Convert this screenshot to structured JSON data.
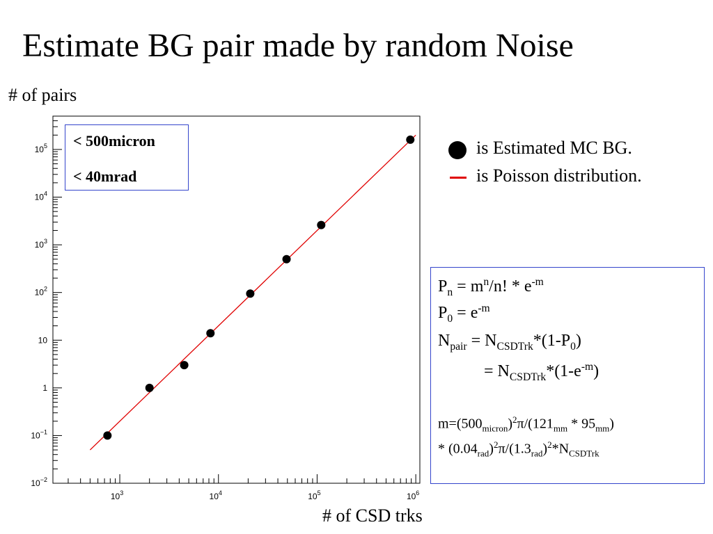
{
  "slide": {
    "title": "Estimate BG pair made by random Noise",
    "ylabel": "# of pairs",
    "xlabel": "# of CSD trks"
  },
  "cuts": {
    "line1": "< 500micron",
    "line2": "< 40mrad"
  },
  "legend": {
    "points": "is Estimated MC BG.",
    "line": "is Poisson distribution.",
    "line_color": "#e00000"
  },
  "formula": {
    "f1": {
      "P": "P",
      "n_sub": "n",
      "eq": " = m",
      "n_sup": "n",
      "rest": "/n! * e",
      "exp": "-m"
    },
    "f2": {
      "P": "P",
      "sub": "0",
      "eq": " = e",
      "exp": "-m"
    },
    "f3": {
      "N": "N",
      "pair": "pair",
      "eq": " = N",
      "csd": "CSDTrk",
      "rest": "*(1-P",
      "zero": "0",
      "close": ")"
    },
    "f4": {
      "eq": "= N",
      "csd": "CSDTrk",
      "rest": "*(1-e",
      "exp": "-m",
      "close": ")"
    },
    "m1": {
      "a": "m=(500",
      "micron": "micron",
      "b": ")",
      "two": "2",
      "c": "π/(121",
      "mm": "mm",
      "d": " * 95",
      "mm2": "mm",
      "e": ")"
    },
    "m2": {
      "a": "* (0.04",
      "rad": "rad",
      "b": ")",
      "two": "2",
      "c": "π/(1.3",
      "rad2": "rad",
      "d": ")",
      "two2": "2",
      "e": "*N",
      "csd": "CSDTrk"
    }
  },
  "chart_data": {
    "type": "scatter",
    "xscale": "log",
    "yscale": "log",
    "xlim": [
      210,
      1100000
    ],
    "ylim": [
      0.01,
      500000
    ],
    "x_ticks": [
      {
        "value": 1000,
        "base": "10",
        "exp": "3"
      },
      {
        "value": 10000,
        "base": "10",
        "exp": "4"
      },
      {
        "value": 100000,
        "base": "10",
        "exp": "5"
      },
      {
        "value": 1000000,
        "base": "10",
        "exp": "6"
      }
    ],
    "y_ticks": [
      {
        "value": 0.01,
        "base": "10",
        "exp": "−2"
      },
      {
        "value": 0.1,
        "base": "10",
        "exp": "−1"
      },
      {
        "value": 1,
        "base": "1",
        "exp": ""
      },
      {
        "value": 10,
        "base": "10",
        "exp": ""
      },
      {
        "value": 100,
        "base": "10",
        "exp": "2"
      },
      {
        "value": 1000,
        "base": "10",
        "exp": "3"
      },
      {
        "value": 10000,
        "base": "10",
        "exp": "4"
      },
      {
        "value": 100000,
        "base": "10",
        "exp": "5"
      }
    ],
    "series": [
      {
        "marker": "circle",
        "color": "#000000",
        "points": [
          {
            "x": 750,
            "y": 0.1
          },
          {
            "x": 2000,
            "y": 1.0
          },
          {
            "x": 4500,
            "y": 3.0
          },
          {
            "x": 8300,
            "y": 14
          },
          {
            "x": 21000,
            "y": 95
          },
          {
            "x": 49000,
            "y": 500
          },
          {
            "x": 110000,
            "y": 2600
          },
          {
            "x": 880000,
            "y": 160000
          }
        ]
      },
      {
        "marker": "line",
        "color": "#e00000",
        "points": [
          {
            "x": 500,
            "y": 0.05
          },
          {
            "x": 1000000,
            "y": 200000
          }
        ]
      }
    ],
    "grid": false
  }
}
